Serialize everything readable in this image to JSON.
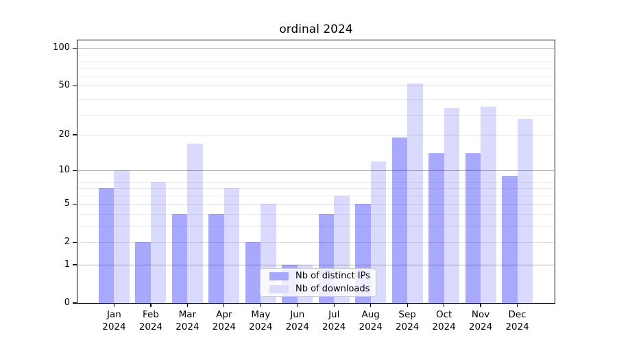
{
  "figure": {
    "title": "ordinal 2024",
    "background_color": "#ffffff"
  },
  "legend": {
    "items": [
      {
        "label": "Nb of distinct IPs",
        "swatch_color": "#a8a8fa"
      },
      {
        "label": "Nb of downloads",
        "swatch_color": "#dbdbfc"
      }
    ]
  },
  "chart_data": {
    "type": "bar",
    "title": "ordinal 2024",
    "categories": [
      "Jan 2024",
      "Feb 2024",
      "Mar 2024",
      "Apr 2024",
      "May 2024",
      "Jun 2024",
      "Jul 2024",
      "Aug 2024",
      "Sep 2024",
      "Oct 2024",
      "Nov 2024",
      "Dec 2024"
    ],
    "x_tick_lines": [
      [
        "Jan",
        "2024"
      ],
      [
        "Feb",
        "2024"
      ],
      [
        "Mar",
        "2024"
      ],
      [
        "Apr",
        "2024"
      ],
      [
        "May",
        "2024"
      ],
      [
        "Jun",
        "2024"
      ],
      [
        "Jul",
        "2024"
      ],
      [
        "Aug",
        "2024"
      ],
      [
        "Sep",
        "2024"
      ],
      [
        "Oct",
        "2024"
      ],
      [
        "Nov",
        "2024"
      ],
      [
        "Dec",
        "2024"
      ]
    ],
    "series": [
      {
        "name": "Nb of distinct IPs",
        "color": "rgba(0,0,255,0.34)",
        "values": [
          7,
          2,
          4,
          4,
          2,
          1,
          4,
          5,
          19,
          14,
          14,
          9
        ]
      },
      {
        "name": "Nb of downloads",
        "color": "rgba(0,0,255,0.145)",
        "values": [
          10,
          8,
          17,
          7,
          5,
          1,
          6,
          12,
          52,
          33,
          34,
          27
        ]
      }
    ],
    "yscale": "log10(1+v)",
    "ylim": [
      0,
      115
    ],
    "y_ticks": [
      0,
      1,
      2,
      5,
      10,
      20,
      50,
      100
    ],
    "y_major_gridlines": [
      1,
      10,
      100
    ],
    "y_minor_gridlines": [
      3,
      4,
      6,
      7,
      8,
      29,
      39,
      59,
      69,
      79,
      89
    ],
    "grid": true,
    "legend_position": "lower center",
    "colors": {
      "major_grid": "#b0b0b0",
      "semi_grid": "#e2e2e2",
      "minor_grid": "#ededed",
      "axis": "#000000"
    }
  }
}
